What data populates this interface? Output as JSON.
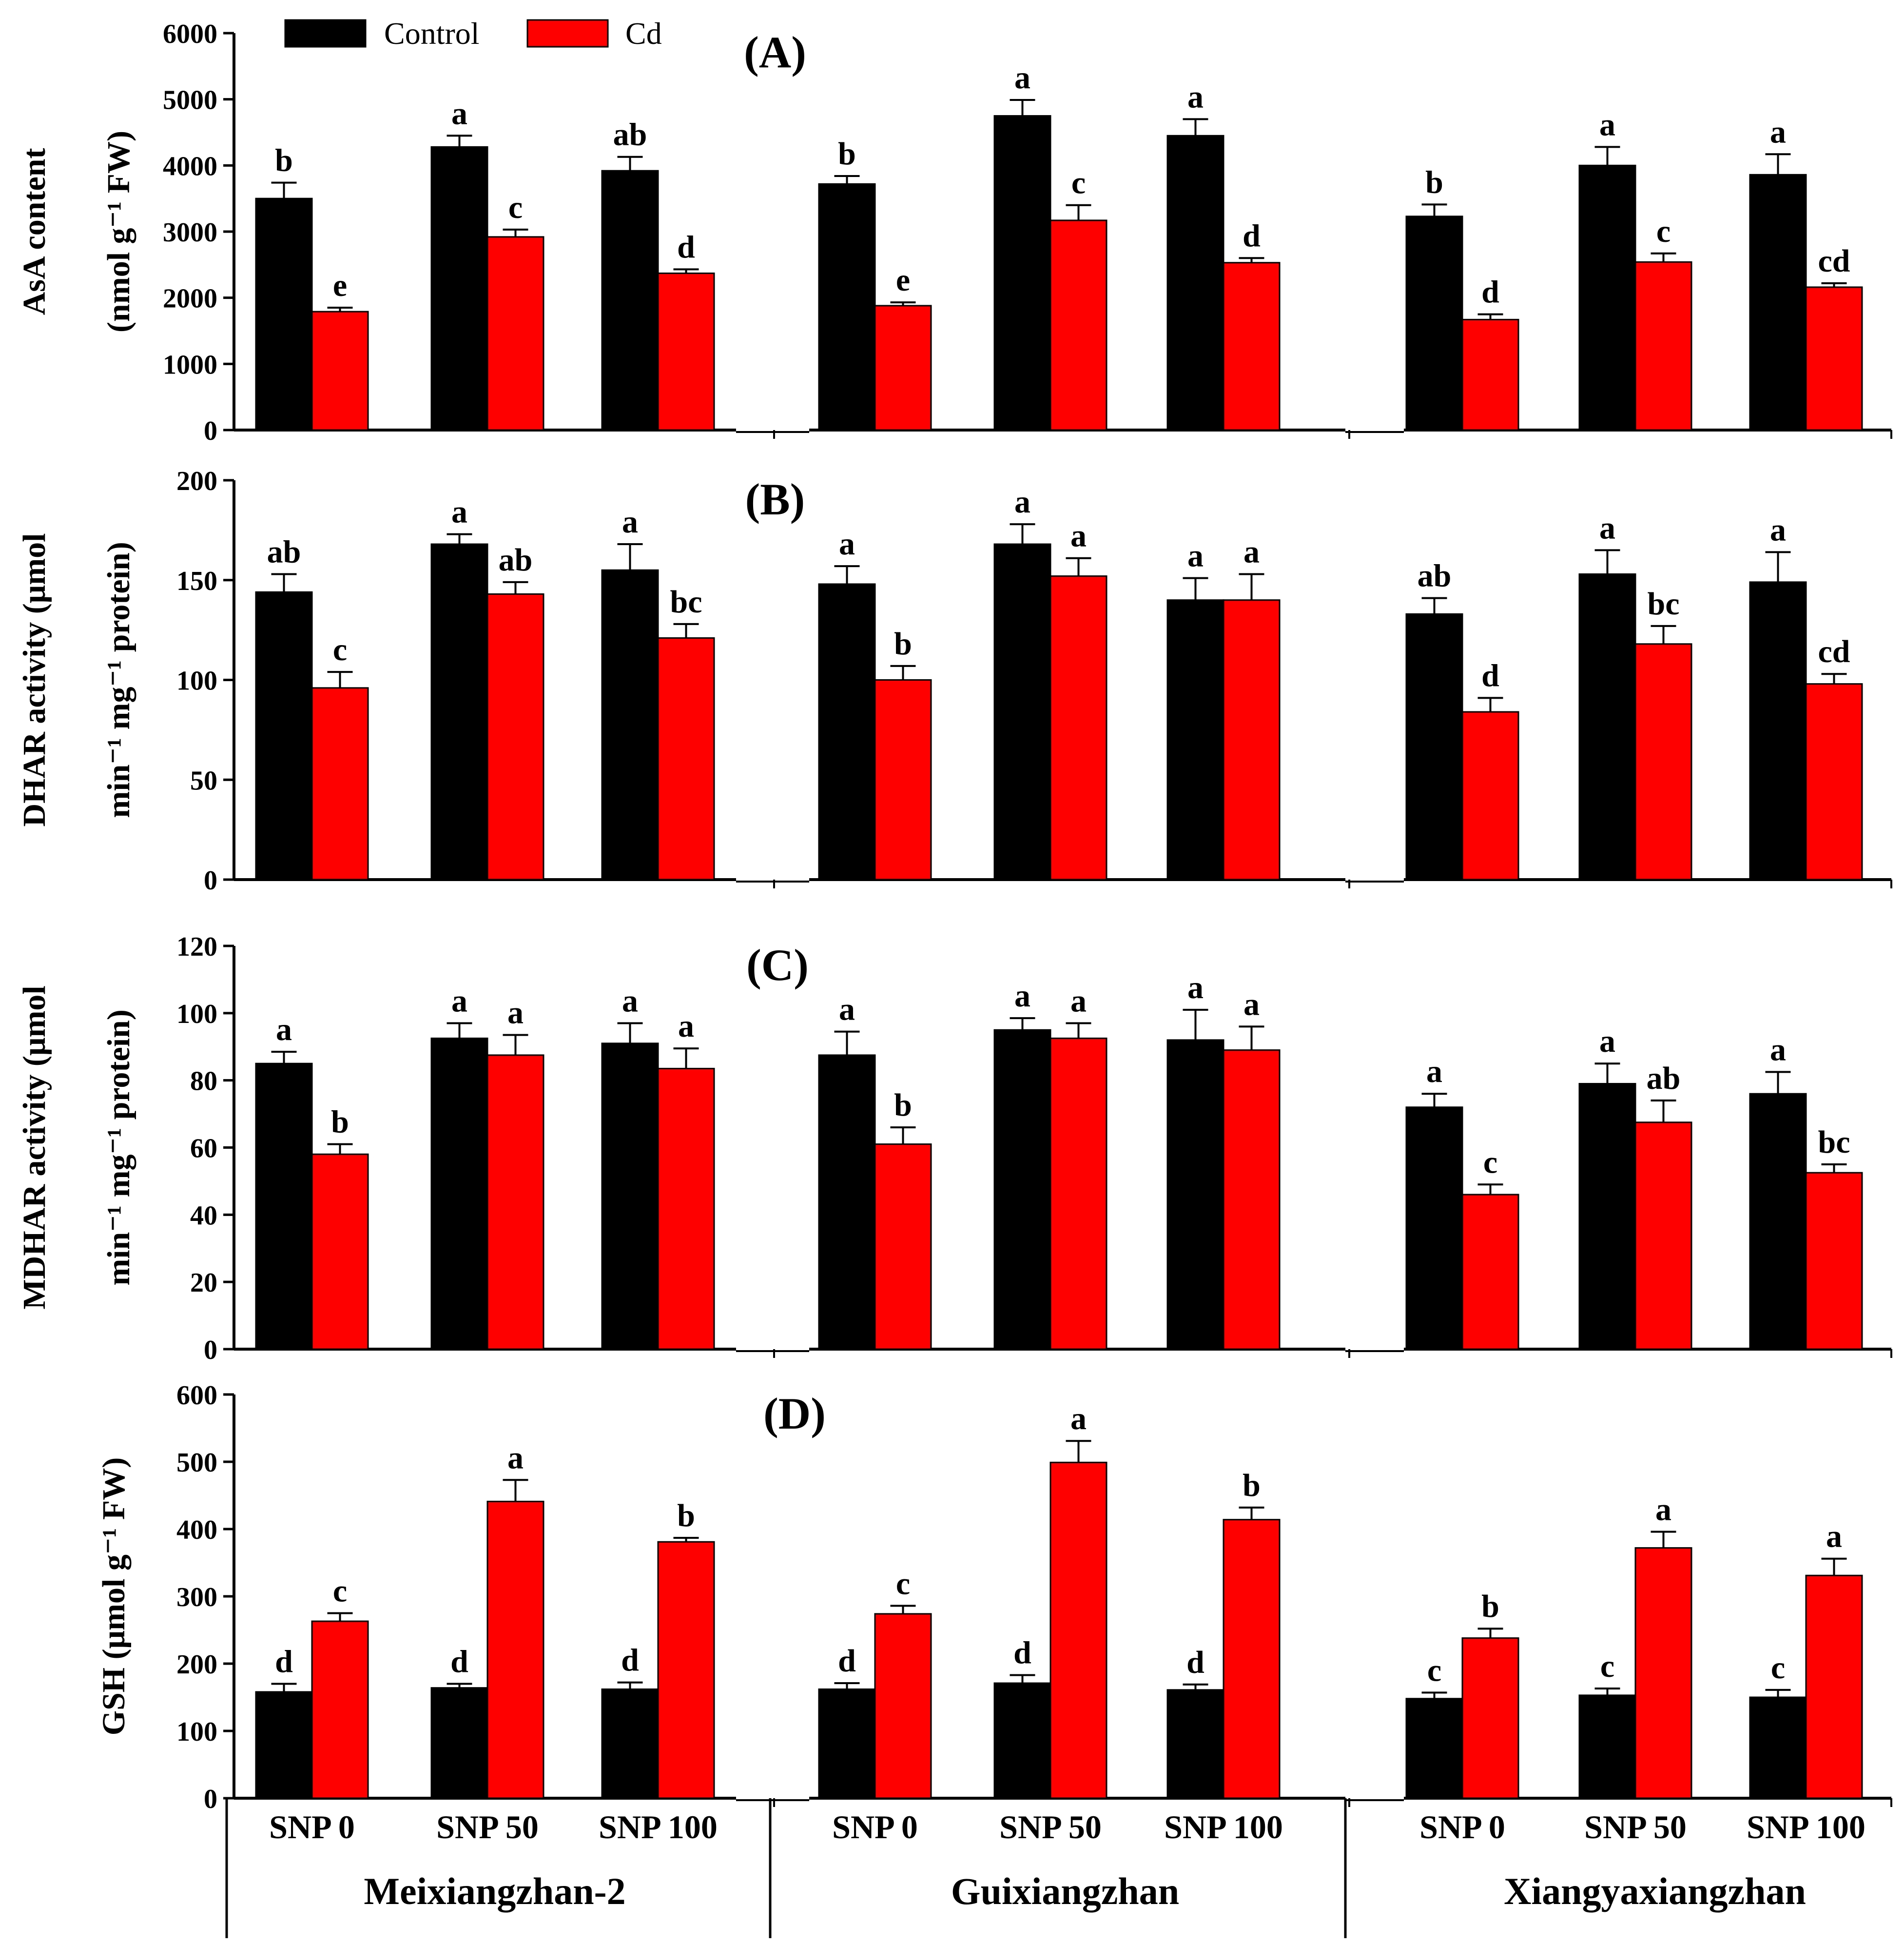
{
  "chart_data": {
    "type": "bar",
    "legend": {
      "placement": "top-left",
      "entries": [
        {
          "name": "Control",
          "color": "#000000"
        },
        {
          "name": "Cd",
          "color": "#ff0000"
        }
      ]
    },
    "cultivars": [
      "Meixiangzhan-2",
      "Guixiangzhan",
      "Xiangyaxiangzhan"
    ],
    "treatments": [
      "SNP 0",
      "SNP 50",
      "SNP 100"
    ],
    "colors": {
      "control": "#000000",
      "cd": "#ff0000"
    },
    "panels": [
      {
        "id": "A",
        "label": "(A)",
        "ylabel": [
          "(nmol g⁻¹ FW)",
          "AsA content"
        ],
        "ylim": [
          0,
          6000
        ],
        "yticks": [
          "0",
          "1000",
          "2000",
          "3000",
          "4000",
          "5000",
          "6000"
        ],
        "control": [
          3500,
          4280,
          3920,
          3720,
          4750,
          4450,
          3230,
          4000,
          3860
        ],
        "control_err": [
          240,
          170,
          210,
          120,
          240,
          250,
          180,
          280,
          310
        ],
        "cd": [
          1790,
          2920,
          2370,
          1880,
          3170,
          2530,
          1670,
          2540,
          2160
        ],
        "cd_err": [
          60,
          110,
          60,
          50,
          230,
          70,
          80,
          130,
          60
        ],
        "control_sig": [
          "b",
          "a",
          "ab",
          "b",
          "a",
          "a",
          "b",
          "a",
          "a"
        ],
        "cd_sig": [
          "e",
          "c",
          "d",
          "e",
          "c",
          "d",
          "d",
          "c",
          "cd"
        ]
      },
      {
        "id": "B",
        "label": "(B)",
        "ylabel": [
          "min⁻¹ mg⁻¹ protein)",
          "DHAR activity (μmol"
        ],
        "ylim": [
          0,
          200
        ],
        "yticks": [
          "0",
          "50",
          "100",
          "150",
          "200"
        ],
        "control": [
          144,
          168,
          155,
          148,
          168,
          140,
          133,
          153,
          149
        ],
        "control_err": [
          9,
          5,
          13,
          9,
          10,
          11,
          8,
          12,
          15
        ],
        "cd": [
          96,
          143,
          121,
          100,
          152,
          140,
          84,
          118,
          98
        ],
        "cd_err": [
          8,
          6,
          7,
          7,
          9,
          13,
          7,
          9,
          5
        ],
        "control_sig": [
          "ab",
          "a",
          "a",
          "a",
          "a",
          "a",
          "ab",
          "a",
          "a"
        ],
        "cd_sig": [
          "c",
          "ab",
          "bc",
          "b",
          "a",
          "a",
          "d",
          "bc",
          "cd"
        ]
      },
      {
        "id": "C",
        "label": "(C)",
        "ylabel": [
          "min⁻¹ mg⁻¹ protein)",
          "MDHAR activity (μmol"
        ],
        "ylim": [
          0,
          120
        ],
        "yticks": [
          "0",
          "20",
          "40",
          "60",
          "80",
          "100",
          "120"
        ],
        "control": [
          85,
          92.5,
          91,
          87.5,
          95,
          92,
          72,
          79,
          76
        ],
        "control_err": [
          3.5,
          4.5,
          6,
          7,
          3.5,
          9,
          4,
          6,
          6.5
        ],
        "cd": [
          58,
          87.5,
          83.5,
          61,
          92.5,
          89,
          46,
          67.5,
          52.5
        ],
        "cd_err": [
          3,
          6,
          6,
          5,
          4.5,
          7,
          3,
          6.5,
          2.5
        ],
        "control_sig": [
          "a",
          "a",
          "a",
          "a",
          "a",
          "a",
          "a",
          "a",
          "a"
        ],
        "cd_sig": [
          "b",
          "a",
          "a",
          "b",
          "a",
          "a",
          "c",
          "ab",
          "bc"
        ]
      },
      {
        "id": "D",
        "label": "(D)",
        "ylabel": [
          "GSH (μmol g⁻¹ FW)"
        ],
        "ylim": [
          0,
          600
        ],
        "yticks": [
          "0",
          "100",
          "200",
          "300",
          "400",
          "500",
          "600"
        ],
        "control": [
          158,
          164,
          162,
          162,
          171,
          161,
          148,
          153,
          150
        ],
        "control_err": [
          12,
          6,
          10,
          9,
          12,
          8,
          9,
          10,
          11
        ],
        "cd": [
          263,
          441,
          381,
          274,
          499,
          414,
          238,
          372,
          331
        ],
        "cd_err": [
          12,
          32,
          6,
          12,
          32,
          18,
          14,
          24,
          25
        ],
        "control_sig": [
          "d",
          "d",
          "d",
          "d",
          "d",
          "d",
          "c",
          "c",
          "c"
        ],
        "cd_sig": [
          "c",
          "a",
          "b",
          "c",
          "a",
          "b",
          "b",
          "a",
          "a"
        ]
      }
    ]
  }
}
